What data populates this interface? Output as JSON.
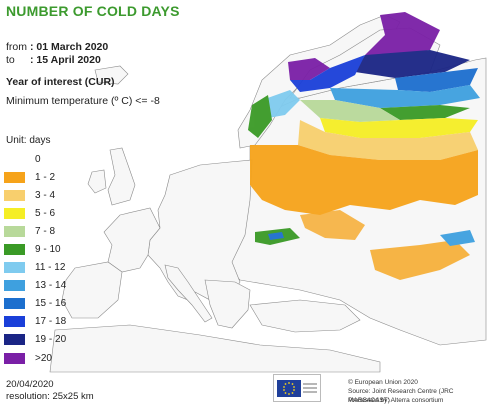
{
  "header": {
    "title": "NUMBER OF COLD DAYS",
    "from_label": "from",
    "from_value": ": 01 March 2020",
    "to_label": "to",
    "to_value": ": 15 April 2020",
    "year_of_interest": "Year of interest (CUR)",
    "criterion": "Minimum temperature (º C) <= -8"
  },
  "legend": {
    "unit": "Unit: days",
    "items": [
      {
        "label": "0",
        "color": "none"
      },
      {
        "label": "1 - 2",
        "color": "#f6a31a"
      },
      {
        "label": "3 - 4",
        "color": "#f8cf6d"
      },
      {
        "label": "5 - 6",
        "color": "#f5ee25"
      },
      {
        "label": "7 - 8",
        "color": "#b8d99a"
      },
      {
        "label": "9 - 10",
        "color": "#3a9a26"
      },
      {
        "label": "11 - 12",
        "color": "#7fcbef"
      },
      {
        "label": "13 - 14",
        "color": "#3ea0df"
      },
      {
        "label": "15 - 16",
        "color": "#1c6fce"
      },
      {
        "label": "17 - 18",
        "color": "#1a3fd9"
      },
      {
        "label": "19 - 20",
        "color": "#1a2585"
      },
      {
        "label": ">20",
        "color": "#7a1fa6"
      }
    ]
  },
  "footer": {
    "date": "20/04/2020",
    "resolution": "resolution: 25x25 km",
    "copyright": "© European Union 2020",
    "source": "Source: Joint Research Centre (JRC MARS4CAST)",
    "processed": "Processed by: Alterra consortium"
  },
  "map": {
    "land_color": "#f7f7f7",
    "border_color": "#8a8a8a",
    "sea_color": "#ffffff"
  }
}
